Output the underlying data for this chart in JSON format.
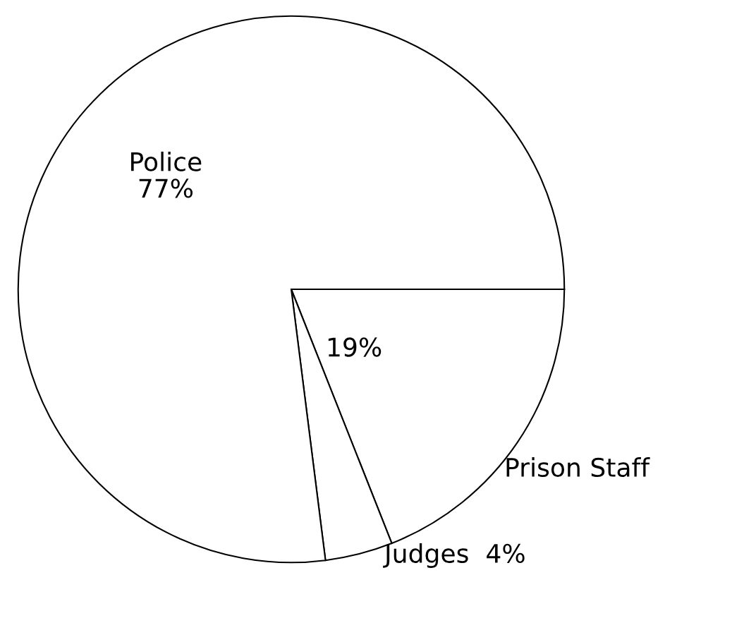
{
  "chart_data": {
    "type": "pie",
    "categories": [
      "Prison Staff",
      "Judges",
      "Police"
    ],
    "values": [
      19,
      4,
      77
    ],
    "value_labels": [
      "19%",
      "4%",
      "77%"
    ],
    "colors": [
      "#ffffff",
      "#ffffff",
      "#ffffff"
    ]
  }
}
